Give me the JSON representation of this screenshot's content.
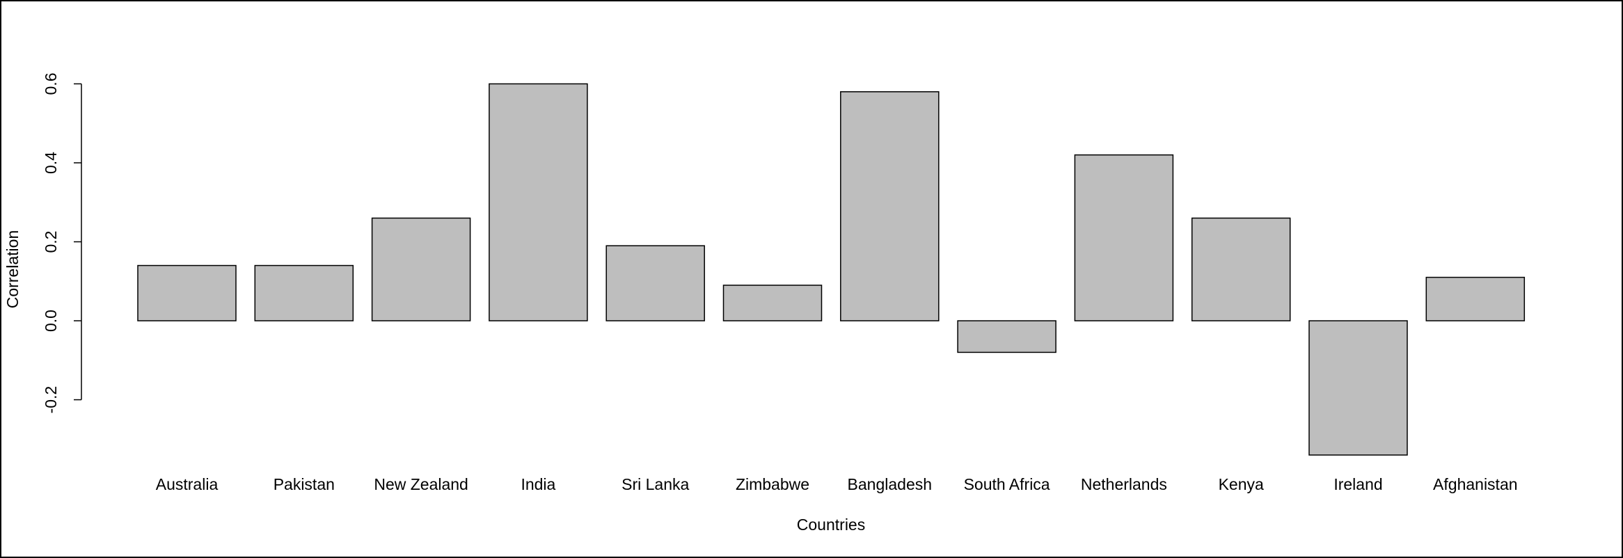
{
  "chart_data": {
    "type": "bar",
    "x_label": "Countries",
    "y_label": "Correlation",
    "categories": [
      "Australia",
      "Pakistan",
      "New Zealand",
      "India",
      "Sri Lanka",
      "Zimbabwe",
      "Bangladesh",
      "South Africa",
      "Netherlands",
      "Kenya",
      "Ireland",
      "Afghanistan"
    ],
    "values": [
      0.14,
      0.14,
      0.26,
      0.6,
      0.19,
      0.09,
      0.58,
      -0.08,
      0.42,
      0.26,
      -0.34,
      0.11
    ],
    "color": "#bebebe",
    "ylim": [
      -0.34,
      0.6
    ],
    "yticks": [
      -0.2,
      {
        "value": 0,
        "label": "0.0"
      },
      0.2,
      0.4,
      0.6
    ]
  }
}
